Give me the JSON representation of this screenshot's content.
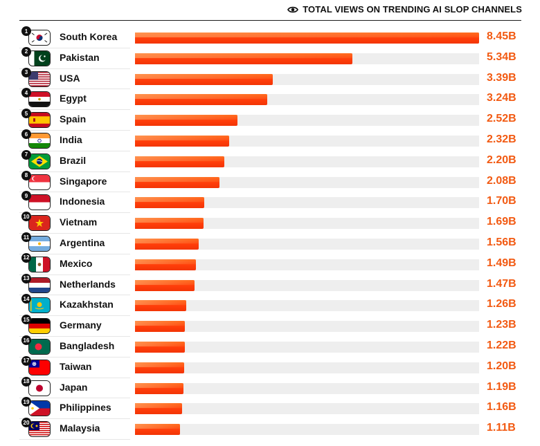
{
  "header": {
    "title": "TOTAL VIEWS ON TRENDING AI SLOP CHANNELS",
    "icon": "eye-icon"
  },
  "colors": {
    "bar": "#ff4a0f",
    "value": "#f25a12",
    "track": "#eeeeee"
  },
  "chart_data": {
    "type": "bar",
    "orientation": "horizontal",
    "title": "TOTAL VIEWS ON TRENDING AI SLOP CHANNELS",
    "unit": "B",
    "xlim": [
      0,
      8.45
    ],
    "rows": [
      {
        "rank": "1",
        "country": "South Korea",
        "value": 8.45,
        "label": "8.45B",
        "flag": "kr"
      },
      {
        "rank": "2",
        "country": "Pakistan",
        "value": 5.34,
        "label": "5.34B",
        "flag": "pk"
      },
      {
        "rank": "3",
        "country": "USA",
        "value": 3.39,
        "label": "3.39B",
        "flag": "us"
      },
      {
        "rank": "4",
        "country": "Egypt",
        "value": 3.24,
        "label": "3.24B",
        "flag": "eg"
      },
      {
        "rank": "5",
        "country": "Spain",
        "value": 2.52,
        "label": "2.52B",
        "flag": "es"
      },
      {
        "rank": "6",
        "country": "India",
        "value": 2.32,
        "label": "2.32B",
        "flag": "in"
      },
      {
        "rank": "7",
        "country": "Brazil",
        "value": 2.2,
        "label": "2.20B",
        "flag": "br"
      },
      {
        "rank": "8",
        "country": "Singapore",
        "value": 2.08,
        "label": "2.08B",
        "flag": "sg"
      },
      {
        "rank": "9",
        "country": "Indonesia",
        "value": 1.7,
        "label": "1.70B",
        "flag": "id"
      },
      {
        "rank": "10",
        "country": "Vietnam",
        "value": 1.69,
        "label": "1.69B",
        "flag": "vn"
      },
      {
        "rank": "11",
        "country": "Argentina",
        "value": 1.56,
        "label": "1.56B",
        "flag": "ar"
      },
      {
        "rank": "12",
        "country": "Mexico",
        "value": 1.49,
        "label": "1.49B",
        "flag": "mx"
      },
      {
        "rank": "13",
        "country": "Netherlands",
        "value": 1.47,
        "label": "1.47B",
        "flag": "nl"
      },
      {
        "rank": "14",
        "country": "Kazakhstan",
        "value": 1.26,
        "label": "1.26B",
        "flag": "kz"
      },
      {
        "rank": "15",
        "country": "Germany",
        "value": 1.23,
        "label": "1.23B",
        "flag": "de"
      },
      {
        "rank": "16",
        "country": "Bangladesh",
        "value": 1.22,
        "label": "1.22B",
        "flag": "bd"
      },
      {
        "rank": "17",
        "country": "Taiwan",
        "value": 1.2,
        "label": "1.20B",
        "flag": "tw"
      },
      {
        "rank": "18",
        "country": "Japan",
        "value": 1.19,
        "label": "1.19B",
        "flag": "jp"
      },
      {
        "rank": "19",
        "country": "Philippines",
        "value": 1.16,
        "label": "1.16B",
        "flag": "ph"
      },
      {
        "rank": "20",
        "country": "Malaysia",
        "value": 1.11,
        "label": "1.11B",
        "flag": "my"
      }
    ]
  }
}
